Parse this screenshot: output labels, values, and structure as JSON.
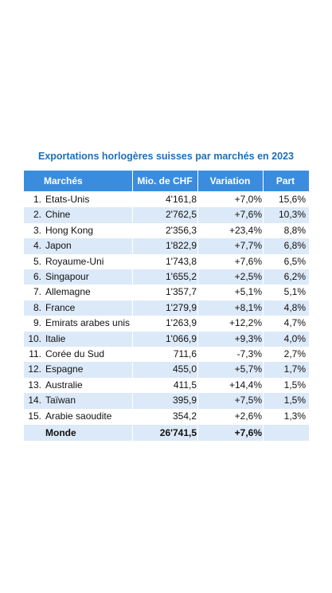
{
  "header": {
    "title": "Exportations horlogères suisses par marchés en 2023"
  },
  "table": {
    "columns": [
      "Marchés",
      "Mio. de CHF",
      "Variation",
      "Part"
    ],
    "rows": [
      [
        "1.",
        "Etats-Unis",
        "4'161,8",
        "+7,0%",
        "15,6%"
      ],
      [
        "2.",
        "Chine",
        "2'762,5",
        "+7,6%",
        "10,3%"
      ],
      [
        "3.",
        "Hong Kong",
        "2'356,3",
        "+23,4%",
        "8,8%"
      ],
      [
        "4.",
        "Japon",
        "1'822,9",
        "+7,7%",
        "6,8%"
      ],
      [
        "5.",
        "Royaume-Uni",
        "1'743,8",
        "+7,6%",
        "6,5%"
      ],
      [
        "6.",
        "Singapour",
        "1'655,2",
        "+2,5%",
        "6,2%"
      ],
      [
        "7.",
        "Allemagne",
        "1'357,7",
        "+5,1%",
        "5,1%"
      ],
      [
        "8.",
        "France",
        "1'279,9",
        "+8,1%",
        "4,8%"
      ],
      [
        "9.",
        "Emirats arabes unis",
        "1'263,9",
        "+12,2%",
        "4,7%"
      ],
      [
        "10.",
        "Italie",
        "1'066,9",
        "+9,3%",
        "4,0%"
      ],
      [
        "11.",
        "Corée du Sud",
        "711,6",
        "-7,3%",
        "2,7%"
      ],
      [
        "12.",
        "Espagne",
        "455,0",
        "+5,7%",
        "1,7%"
      ],
      [
        "13.",
        "Australie",
        "411,5",
        "+14,4%",
        "1,5%"
      ],
      [
        "14.",
        "Taïwan",
        "395,9",
        "+7,5%",
        "1,5%"
      ],
      [
        "15.",
        "Arabie saoudite",
        "354,2",
        "+2,6%",
        "1,3%"
      ]
    ],
    "total": [
      "Monde",
      "26'741,5",
      "+7,6%"
    ]
  }
}
